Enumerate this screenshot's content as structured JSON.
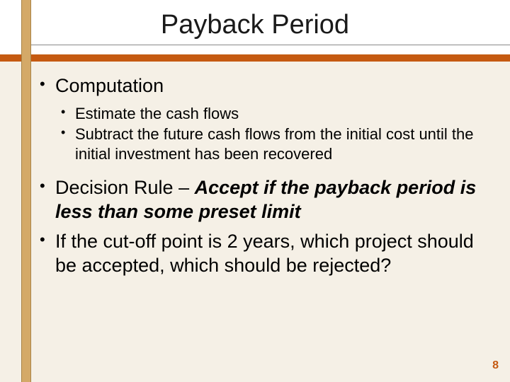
{
  "colors": {
    "background": "#f5f0e6",
    "left_bar": "#d4a968",
    "left_bar_border": "#a98347",
    "title_bg": "#ffffff",
    "divider": "#c55a11",
    "text": "#000000",
    "page_number": "#c55a11"
  },
  "typography": {
    "title_fontsize": 38,
    "l1_fontsize": 27,
    "l2_fontsize": 22,
    "page_number_fontsize": 16
  },
  "title": "Payback Period",
  "bullets": {
    "b1": "Computation",
    "b1_sub1": "Estimate the cash flows",
    "b1_sub2": "Subtract the future cash flows from the initial cost until the initial investment has been recovered",
    "b2_prefix": "Decision Rule – ",
    "b2_emph": "Accept if the payback period is less than some preset limit",
    "b3": "If the cut-off point is 2 years, which project should be accepted, which should be rejected?"
  },
  "page_number": "8"
}
